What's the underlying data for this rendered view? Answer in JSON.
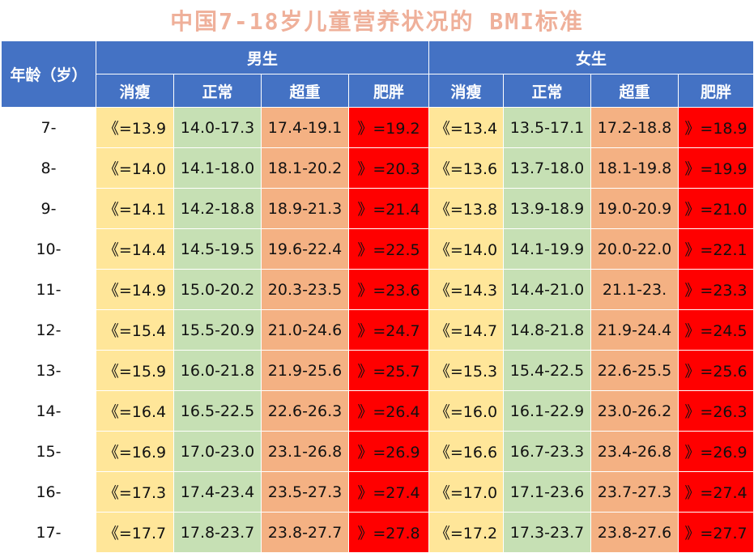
{
  "title": "中国7-18岁儿童营养状况的 BMI标准",
  "header": {
    "age_label": "年龄（岁）",
    "male_label": "男生",
    "female_label": "女生",
    "categories": [
      "消瘦",
      "正常",
      "超重",
      "肥胖"
    ]
  },
  "colors": {
    "header": "#4472c4",
    "thin": "#ffe699",
    "normal": "#c6e0b4",
    "overweight": "#f4b183",
    "obese": "#ff0000",
    "title": "#efb09a"
  },
  "rows": [
    {
      "age": "7-",
      "male": [
        "《=13.9",
        "14.0-17.3",
        "17.4-19.1",
        "》=19.2"
      ],
      "female": [
        "《=13.4",
        "13.5-17.1",
        "17.2-18.8",
        "》=18.9"
      ]
    },
    {
      "age": "8-",
      "male": [
        "《=14.0",
        "14.1-18.0",
        "18.1-20.2",
        "》=20.3"
      ],
      "female": [
        "《=13.6",
        "13.7-18.0",
        "18.1-19.8",
        "》=19.9"
      ]
    },
    {
      "age": "9-",
      "male": [
        "《=14.1",
        "14.2-18.8",
        "18.9-21.3",
        "》=21.4"
      ],
      "female": [
        "《=13.8",
        "13.9-18.9",
        "19.0-20.9",
        "》=21.0"
      ]
    },
    {
      "age": "10-",
      "male": [
        "《=14.4",
        "14.5-19.5",
        "19.6-22.4",
        "》=22.5"
      ],
      "female": [
        "《=14.0",
        "14.1-19.9",
        "20.0-22.0",
        "》=22.1"
      ]
    },
    {
      "age": "11-",
      "male": [
        "《=14.9",
        "15.0-20.2",
        "20.3-23.5",
        "》=23.6"
      ],
      "female": [
        "《=14.3",
        "14.4-21.0",
        "21.1-23.",
        "》=23.3"
      ]
    },
    {
      "age": "12-",
      "male": [
        "《=15.4",
        "15.5-20.9",
        "21.0-24.6",
        "》=24.7"
      ],
      "female": [
        "《=14.7",
        "14.8-21.8",
        "21.9-24.4",
        "》=24.5"
      ]
    },
    {
      "age": "13-",
      "male": [
        "《=15.9",
        "16.0-21.8",
        "21.9-25.6",
        "》=25.7"
      ],
      "female": [
        "《=15.3",
        "15.4-22.5",
        "22.6-25.5",
        "》=25.6"
      ]
    },
    {
      "age": "14-",
      "male": [
        "《=16.4",
        "16.5-22.5",
        "22.6-26.3",
        "》=26.4"
      ],
      "female": [
        "《=16.0",
        "16.1-22.9",
        "23.0-26.2",
        "》=26.3"
      ]
    },
    {
      "age": "15-",
      "male": [
        "《=16.9",
        "17.0-23.0",
        "23.1-26.8",
        "》=26.9"
      ],
      "female": [
        "《=16.6",
        "16.7-23.3",
        "23.4-26.8",
        "》=26.9"
      ]
    },
    {
      "age": "16-",
      "male": [
        "《=17.3",
        "17.4-23.4",
        "23.5-27.3",
        "》=27.4"
      ],
      "female": [
        "《=17.0",
        "17.1-23.6",
        "23.7-27.3",
        "》=27.4"
      ]
    },
    {
      "age": "17-",
      "male": [
        "《=17.7",
        "17.8-23.7",
        "23.8-27.7",
        "》=27.8"
      ],
      "female": [
        "《=17.2",
        "17.3-23.7",
        "23.8-27.6",
        "》=27.7"
      ]
    }
  ]
}
